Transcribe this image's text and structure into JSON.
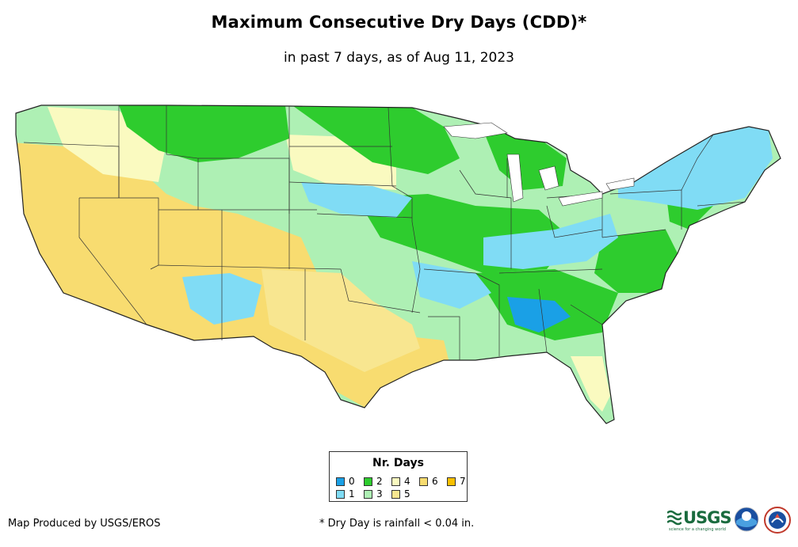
{
  "title": "Maximum Consecutive Dry Days (CDD)*",
  "subtitle": "in past 7 days, as of Aug 11, 2023",
  "legend": {
    "title": "Nr. Days",
    "items": [
      {
        "label": "0",
        "color": "#1aa0e6"
      },
      {
        "label": "1",
        "color": "#80dcf5"
      },
      {
        "label": "2",
        "color": "#2ecc2e"
      },
      {
        "label": "3",
        "color": "#aef0b4"
      },
      {
        "label": "4",
        "color": "#fafac0"
      },
      {
        "label": "5",
        "color": "#f8e690"
      },
      {
        "label": "6",
        "color": "#f8dc70"
      },
      {
        "label": "7",
        "color": "#f8c000"
      }
    ]
  },
  "footer": {
    "producer": "Map Produced by USGS/EROS",
    "footnote": "* Dry Day is rainfall < 0.04 in."
  },
  "logos": {
    "usgs": "USGS",
    "usgs_tagline": "science for a changing world"
  }
}
